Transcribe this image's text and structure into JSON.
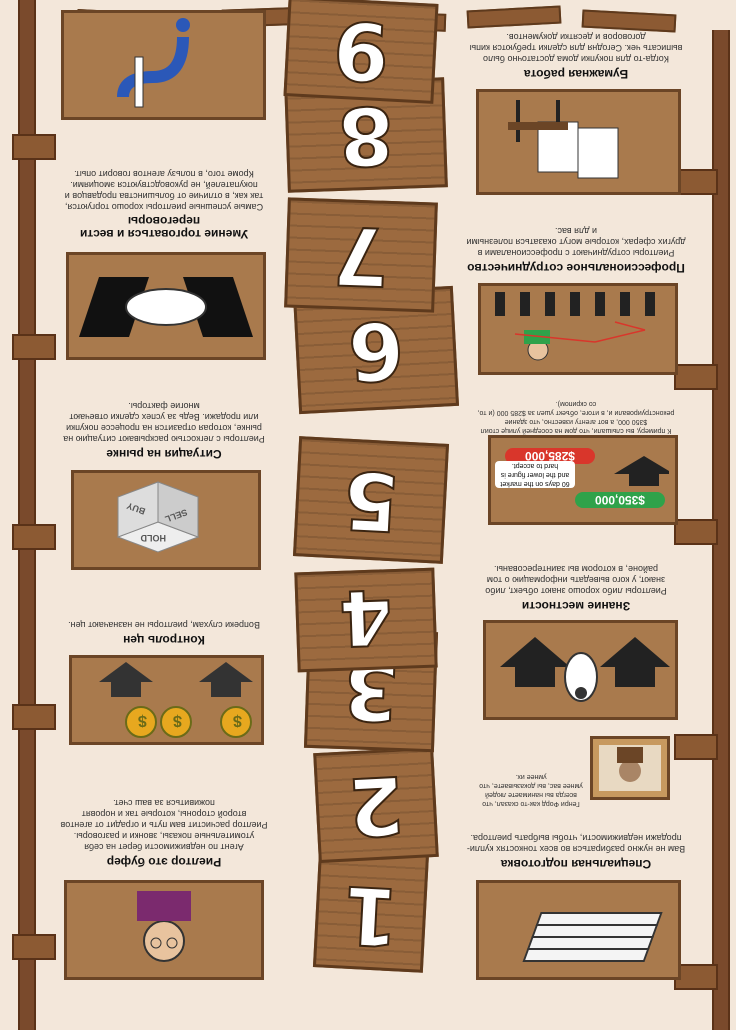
{
  "colors": {
    "background": "#f3e7da",
    "wood_light": "#a97a4d",
    "wood_dark": "#6b4526",
    "green_tag": "#2fa24a",
    "red_tag": "#d9362b",
    "coin": "#e7a81f"
  },
  "numbers": [
    "1",
    "2",
    "3",
    "4",
    "5",
    "6",
    "7",
    "8",
    "9"
  ],
  "sections": {
    "s1": {
      "title": "Специальная подготовка",
      "text": "Вам не нужно разбираться во всех тонкостях купли-продажи недвижимости, чтобы выбрать риелтора.",
      "note": "Генри Форд как-то сказал, что всегда вы нанимаете людей умнее вас, вы доказываете, что умнее их."
    },
    "s2": {
      "title": "Риелтор это буфер",
      "text": "Агент по недвижимости берет на себя утомительные показы, звонки и разговоры. Риелтор расчистит вам путь и оградит от агентов второй стороны, которые так и норовят поживиться за ваш счет."
    },
    "s3": {
      "title": "Знание местности",
      "text": "Риелторы либо хорошо знают объект, либо знают, у кого выведать информацию о том районе, в котором вы заинтересованы."
    },
    "s4": {
      "title": "Контроль цен",
      "text": "Вопреки слухам, риелторы не назначают цен."
    },
    "s5": {
      "price_high": "$350,000",
      "price_low": "$285,000",
      "speech": "60 days on the market and the lower figure is hard to accept.",
      "text": "К примеру, вы слышали, что дом на соседней улице стоил $350 000, а вот агенту известно, что здание реконструировали и, в итоге, объект ушел за $285 000 (и то, со скрипом)."
    },
    "s6": {
      "title": "Ситуация на рынке",
      "text": "Риелторы с легкостью раскрывают ситуацию на рынке, которая отразится на процессе покупки или продажи. Ведь за успех сделки отвечают многие факторы.",
      "cube_words": [
        "SELL",
        "BUY",
        "HOLD"
      ]
    },
    "s7": {
      "title": "Профессиональное сотрудничество",
      "text": "Риелторы сотрудничают с профессионалами в других сферах, которые могут оказаться полезными и для вас."
    },
    "s8": {
      "title": "Умение торговаться и вести переговоры",
      "text": "Самые успешные риелторы хорошо торгуются, так как, в отличие от большинства продавцов и покупателей, не руководствуются эмоциями. Кроме того, в пользу агентов говорит опыт."
    },
    "s9": {
      "title": "Бумажная работа",
      "text": "Когда-то для покупки дома достаточно было выписать чек. Сегодня для сделки требуются кипы договоров и десятки документов."
    }
  }
}
